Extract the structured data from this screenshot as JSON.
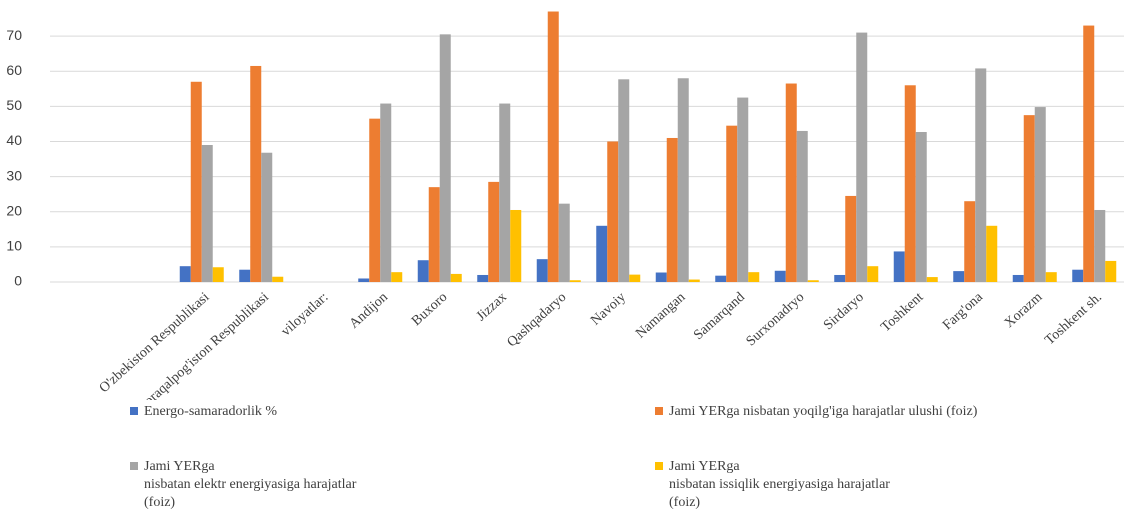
{
  "chart_data": {
    "type": "bar",
    "categories": [
      "O'zbekiston Respublikasi",
      "Qoraqalpog'iston Respublikasi",
      "viloyatlar:",
      "Andijon",
      "Buxoro",
      "Jizzax",
      "Qashqadaryo",
      "Navoiy",
      "Namangan",
      "Samarqand",
      "Surxonadryo",
      "Sirdaryo",
      "Toshkent",
      "Farg'ona",
      "Xorazm",
      "Toshkent sh."
    ],
    "series": [
      {
        "name": "Energo-samaradorlik %",
        "color": "#4472c4",
        "values": [
          4.5,
          3.5,
          null,
          1,
          6.2,
          2,
          6.5,
          16,
          2.7,
          1.8,
          3.2,
          2,
          8.7,
          3.1,
          2,
          3.5
        ]
      },
      {
        "name": "Jami YERga nisbatan yoqilg'iga harajatlar ulushi (foiz)",
        "color": "#ed7d31",
        "values": [
          57,
          61.5,
          null,
          46.5,
          27,
          28.5,
          77,
          40,
          41,
          44.5,
          56.5,
          24.5,
          56,
          23,
          47.5,
          73
        ]
      },
      {
        "name": "Jami YERga\nnisbatan elektr energiyasiga harajatlar\n(foiz)",
        "color": "#a5a5a5",
        "values": [
          39,
          36.8,
          null,
          50.8,
          70.5,
          50.8,
          22.3,
          57.7,
          58,
          52.5,
          43,
          71,
          42.7,
          60.8,
          49.8,
          20.5
        ]
      },
      {
        "name": "Jami YERga\nnisbatan issiqlik energiyasiga harajatlar\n(foiz)",
        "color": "#ffc000",
        "values": [
          4.2,
          1.5,
          null,
          2.8,
          2.3,
          20.5,
          0.5,
          2.1,
          0.7,
          2.8,
          0.5,
          4.5,
          1.4,
          16,
          2.8,
          6
        ]
      }
    ],
    "ylim": [
      0,
      78
    ],
    "yticks": [
      0,
      10,
      20,
      30,
      40,
      50,
      60,
      70
    ],
    "grid": true
  }
}
